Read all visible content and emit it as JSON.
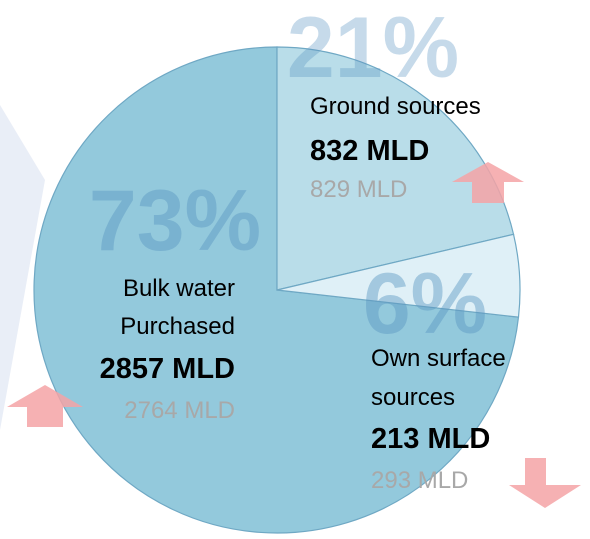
{
  "chart_data": {
    "type": "pie",
    "unit": "MLD",
    "slices": [
      {
        "key": "ground",
        "percent_label": "21%",
        "percent": 21,
        "label": "Ground sources",
        "value": 832,
        "value_label": "832 MLD",
        "previous_value": 829,
        "previous_label": "829 MLD",
        "trend": "up",
        "color": "#b9dde9"
      },
      {
        "key": "surface",
        "percent_label": "6%",
        "percent": 6,
        "label": "Own surface sources",
        "label_lines": [
          "Own surface",
          "sources"
        ],
        "value": 213,
        "value_label": "213 MLD",
        "previous_value": 293,
        "previous_label": "293 MLD",
        "trend": "down",
        "color": "#dff0f7"
      },
      {
        "key": "bulk",
        "percent_label": "73%",
        "percent": 73,
        "label": "Bulk water Purchased",
        "label_lines": [
          "Bulk water",
          "Purchased"
        ],
        "value": 2857,
        "value_label": "2857 MLD",
        "previous_value": 2764,
        "previous_label": "2764 MLD",
        "trend": "up",
        "color": "#93c9dc"
      }
    ]
  },
  "colors": {
    "slice_stroke": "#6fa8c4",
    "percent_text": "#5b96c2",
    "previous_text": "#a8a8a8",
    "arrow_fill": "#f4a3a6",
    "backdrop": "#e9eef7"
  }
}
